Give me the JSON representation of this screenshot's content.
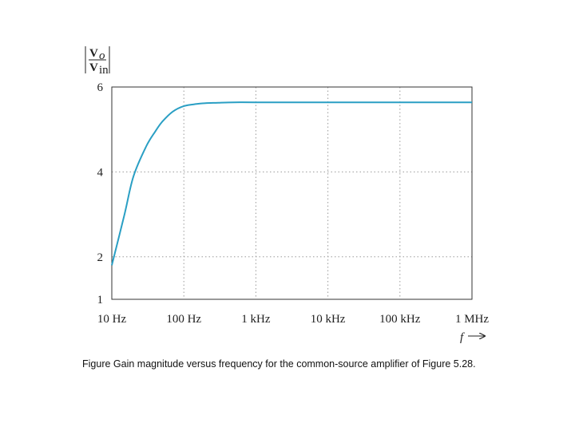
{
  "chart_data": {
    "type": "line",
    "title": "",
    "ylabel": {
      "numerator": "V",
      "numerator_sub": "o",
      "denominator": "V",
      "denominator_sub": "in"
    },
    "xlabel": "f",
    "x_scale": "log",
    "xlim": [
      10,
      1000000
    ],
    "ylim": [
      1,
      6
    ],
    "x_ticks": [
      {
        "value": 10,
        "label": "10 Hz"
      },
      {
        "value": 100,
        "label": "100 Hz"
      },
      {
        "value": 1000,
        "label": "1 kHz"
      },
      {
        "value": 10000,
        "label": "10 kHz"
      },
      {
        "value": 100000,
        "label": "100 kHz"
      },
      {
        "value": 1000000,
        "label": "1 MHz"
      }
    ],
    "y_ticks": [
      {
        "value": 1,
        "label": "1"
      },
      {
        "value": 2,
        "label": "2"
      },
      {
        "value": 4,
        "label": "4"
      },
      {
        "value": 6,
        "label": "6"
      }
    ],
    "grid": true,
    "line_color": "#2a9fc4",
    "series": [
      {
        "x": [
          10,
          15,
          20,
          30,
          40,
          50,
          70,
          100,
          150,
          200,
          300,
          500,
          1000,
          10000,
          100000,
          1000000
        ],
        "y": [
          1.8,
          3.0,
          3.9,
          4.6,
          4.95,
          5.18,
          5.42,
          5.55,
          5.6,
          5.62,
          5.63,
          5.64,
          5.64,
          5.64,
          5.64,
          5.64
        ]
      }
    ]
  },
  "caption": "Figure Gain magnitude versus frequency for the common-source amplifier of Figure 5.28."
}
